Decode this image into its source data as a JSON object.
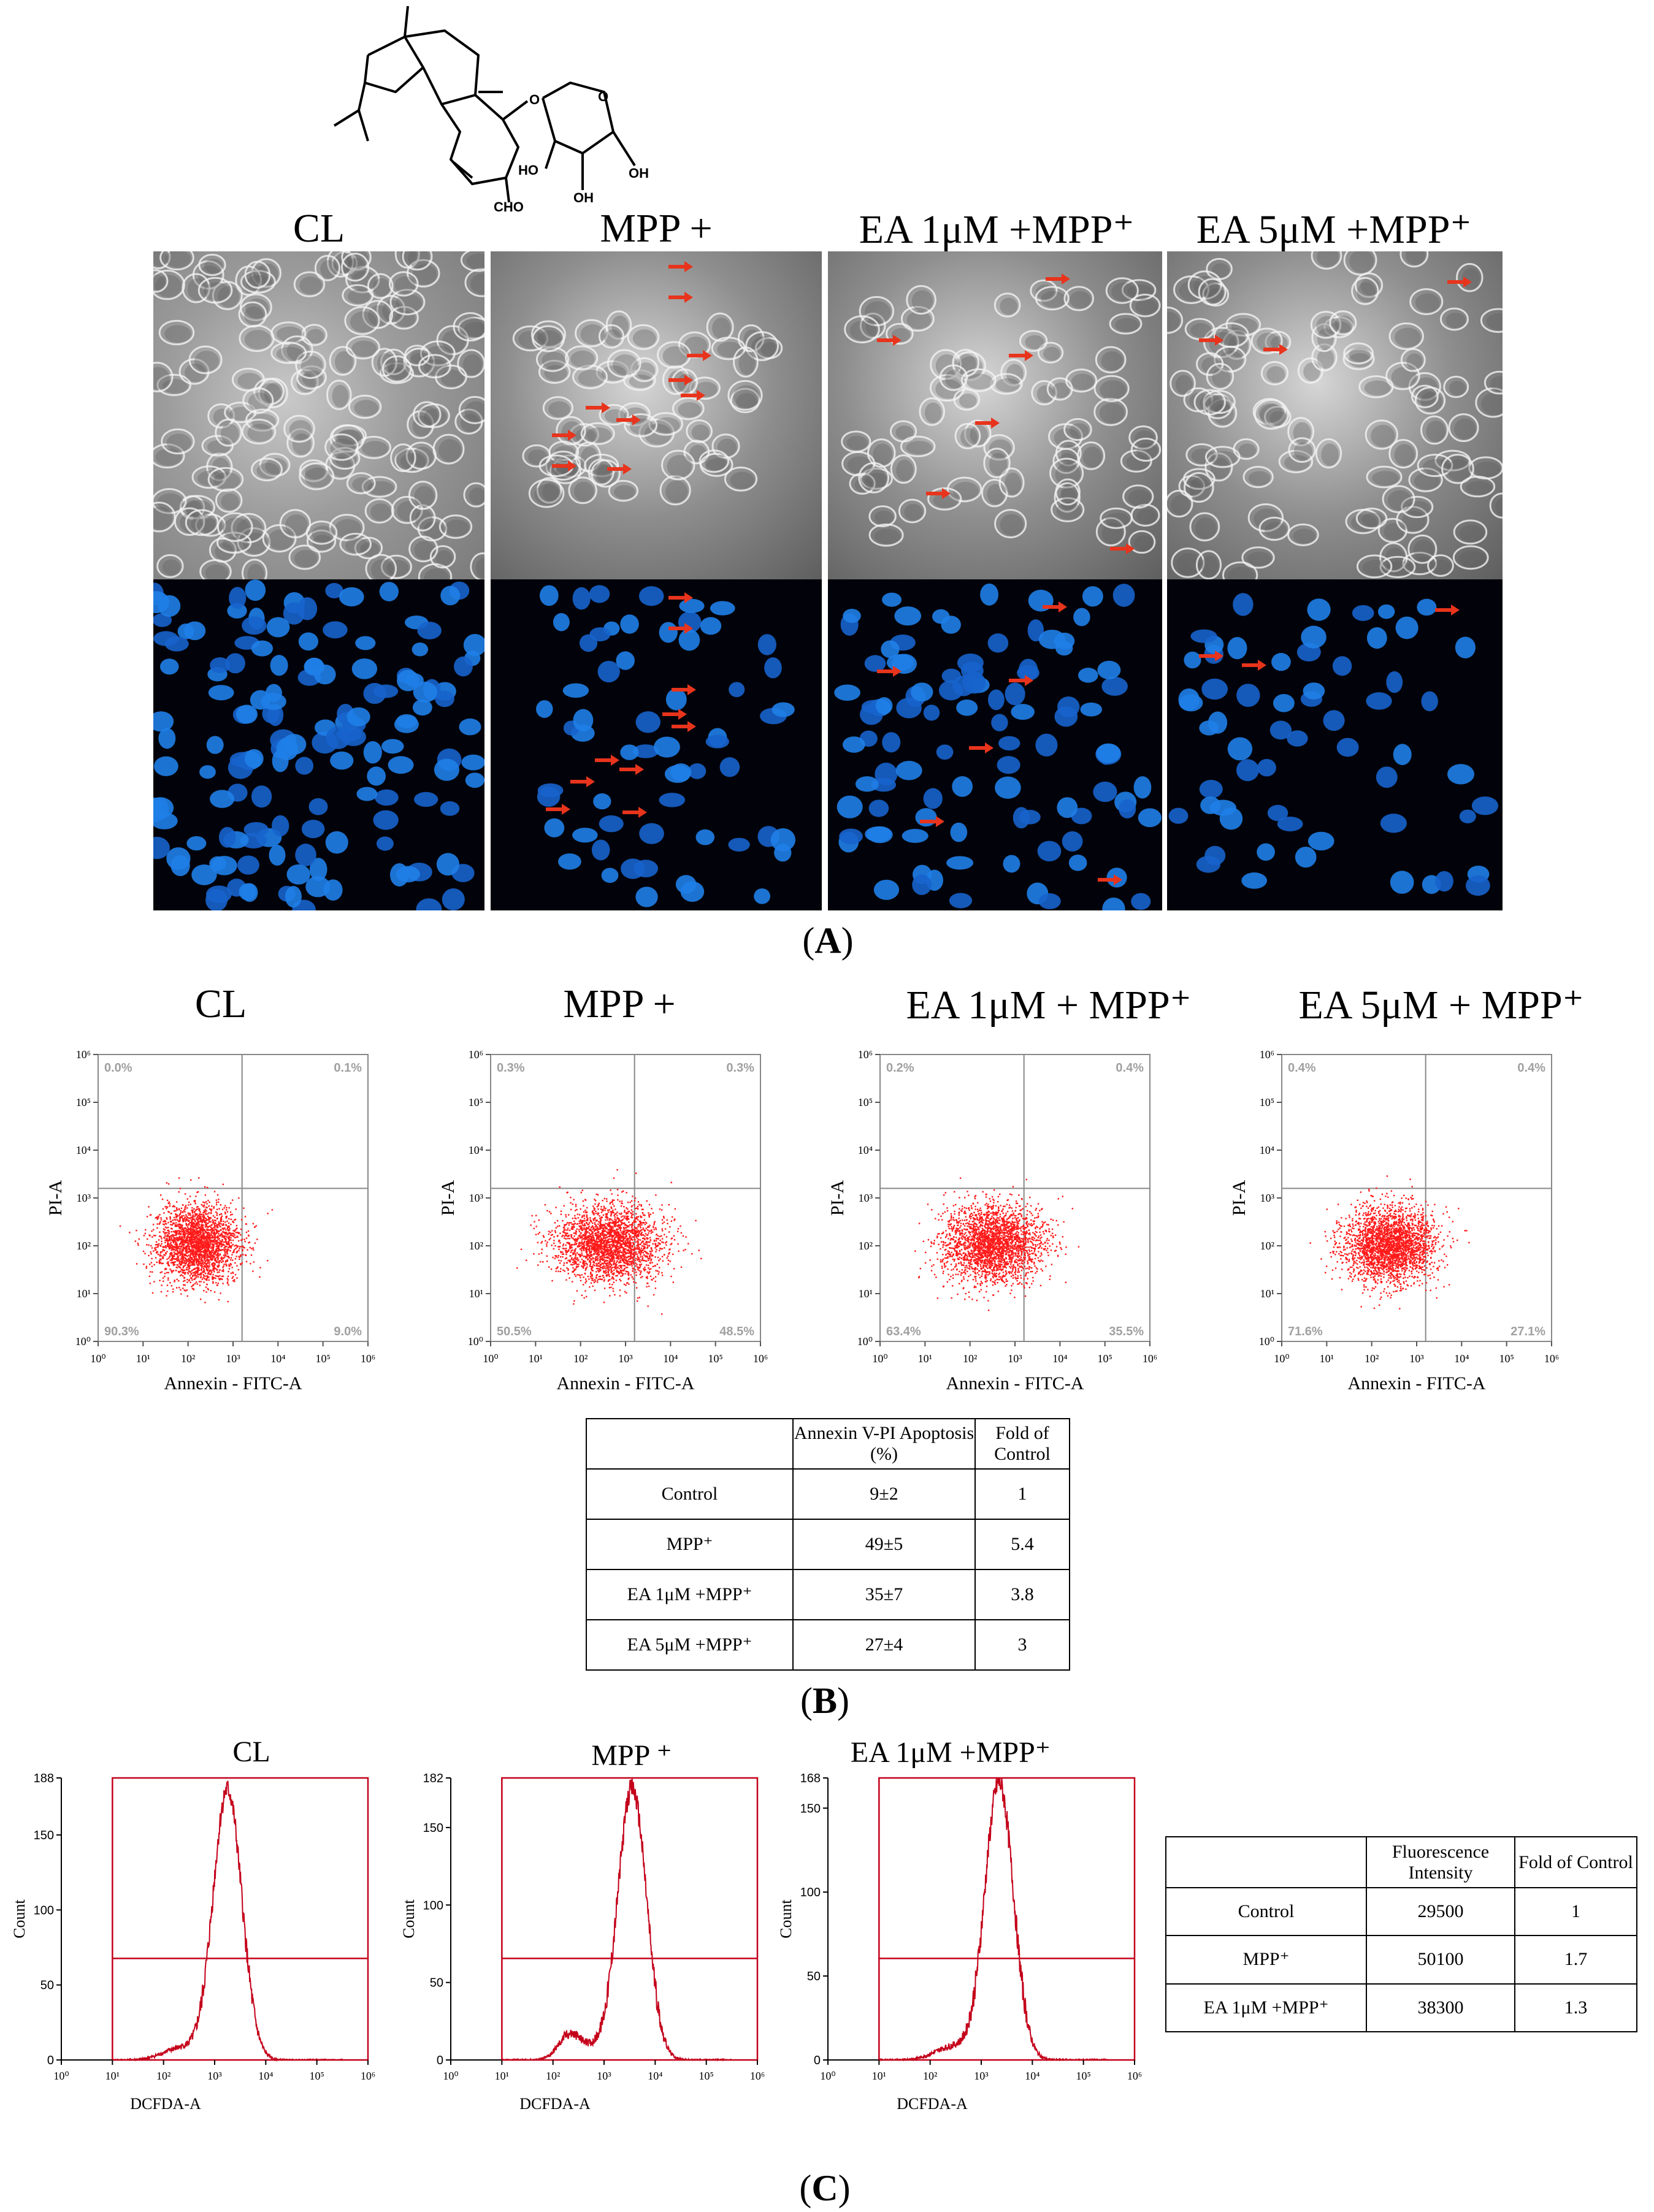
{
  "structure": {
    "labels": [
      "O",
      "O",
      "HO",
      "OH",
      "OH",
      "CHO"
    ]
  },
  "panel_a": {
    "label": "A",
    "columns": [
      "CL",
      "MPP +",
      "EA 1μM +MPP⁺",
      "EA 5μM +MPP⁺"
    ],
    "arrow_color": "#e8341c"
  },
  "panel_b": {
    "label": "B",
    "plots": [
      {
        "title": "CL",
        "quadrants": [
          "0.0%",
          "0.1%",
          "90.3%",
          "9.0%"
        ]
      },
      {
        "title": "MPP +",
        "quadrants": [
          "0.3%",
          "0.3%",
          "50.5%",
          "48.5%"
        ]
      },
      {
        "title": "EA 1μM + MPP⁺",
        "quadrants": [
          "0.2%",
          "0.4%",
          "63.4%",
          "35.5%"
        ]
      },
      {
        "title": "EA 5μM + MPP⁺",
        "quadrants": [
          "0.4%",
          "0.4%",
          "71.6%",
          "27.1%"
        ]
      }
    ],
    "xlabel": "Annexin - FITC-A",
    "ylabel": "PI-A",
    "x_ticks": [
      "10⁰",
      "10¹",
      "10²",
      "10³",
      "10⁴",
      "10⁵",
      "10⁶"
    ],
    "y_ticks": [
      "10⁶",
      "10⁵",
      "10⁴",
      "10³",
      "10²",
      "10¹",
      "10⁰"
    ],
    "dot_color": "#ff1a1a",
    "table": {
      "headers": [
        "",
        "Annexin V-PI Apoptosis (%)",
        "Fold of Control"
      ],
      "rows": [
        [
          "Control",
          "9±2",
          "1"
        ],
        [
          "MPP⁺",
          "49±5",
          "5.4"
        ],
        [
          "EA 1μM +MPP⁺",
          "35±7",
          "3.8"
        ],
        [
          "EA 5μM +MPP⁺",
          "27±4",
          "3"
        ]
      ]
    }
  },
  "panel_c": {
    "label": "C",
    "plots": [
      {
        "title": "CL",
        "ymax": "188",
        "y_ticks": [
          "188",
          "150",
          "100",
          "50",
          "0"
        ],
        "peak_log": 3.25,
        "peak": 180
      },
      {
        "title": "MPP ⁺",
        "ymax": "182",
        "y_ticks": [
          "182",
          "150",
          "100",
          "50",
          "0"
        ],
        "peak_log": 3.55,
        "peak": 175
      },
      {
        "title": "EA 1μM +MPP⁺",
        "ymax": "168",
        "y_ticks": [
          "168",
          "150",
          "100",
          "50",
          "0"
        ],
        "peak_log": 3.35,
        "peak": 165
      }
    ],
    "xlabel": "DCFDA-A",
    "ylabel": "Count",
    "x_ticks": [
      "10⁰",
      "10¹",
      "10²",
      "10³",
      "10⁴",
      "10⁵",
      "10⁶"
    ],
    "line_color": "#c4001a",
    "table": {
      "headers": [
        "",
        "Fluorescence Intensity",
        "Fold of Control"
      ],
      "rows": [
        [
          "Control",
          "29500",
          "1"
        ],
        [
          "MPP⁺",
          "50100",
          "1.7"
        ],
        [
          "EA 1μM +MPP⁺",
          "38300",
          "1.3"
        ]
      ]
    }
  }
}
